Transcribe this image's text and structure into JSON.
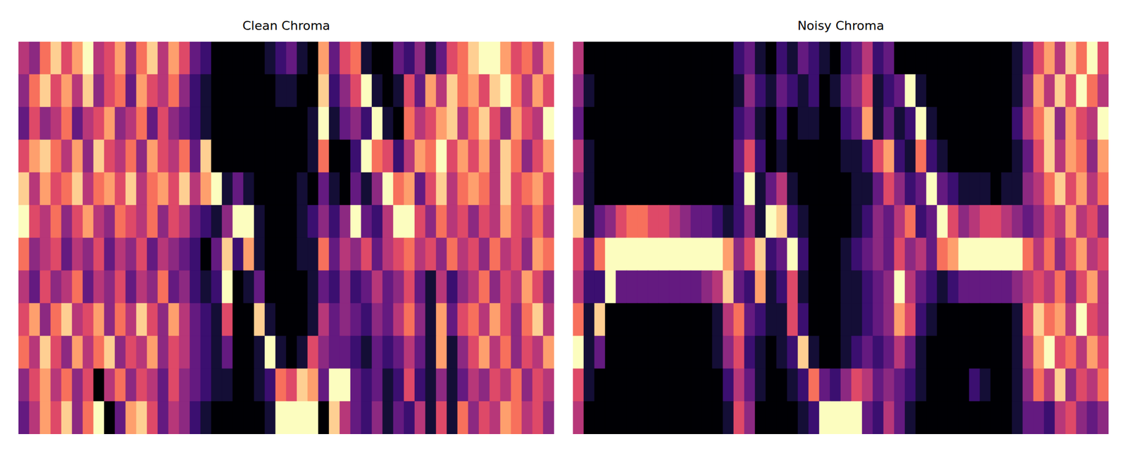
{
  "chart_data": [
    {
      "type": "heatmap",
      "title": "Clean Chroma",
      "tick_labels": false,
      "color": "magma",
      "clim": [
        0,
        1
      ],
      "cells": [
        [
          0.5,
          0.4,
          0.7,
          0.9,
          0.6,
          0.8,
          1.0,
          0.5,
          0.6,
          0.8,
          0.4,
          0.7,
          0.9,
          0.5,
          0.8,
          0.6,
          0.3,
          0.2,
          0.0,
          0.0,
          0.0,
          0.0,
          0.0,
          0.1,
          0.2,
          0.3,
          0.1,
          0.0,
          0.8,
          0.3,
          0.6,
          0.7,
          0.1,
          0.0,
          0.0,
          0.3,
          0.2,
          0.4,
          0.1,
          0.3,
          0.6,
          0.7,
          0.9,
          1.0,
          1.0,
          0.8,
          0.6,
          0.7,
          0.5,
          0.8
        ],
        [
          0.4,
          0.7,
          0.9,
          0.6,
          0.8,
          0.5,
          0.9,
          0.4,
          0.6,
          0.7,
          0.3,
          0.8,
          0.6,
          0.5,
          0.7,
          0.4,
          0.2,
          0.1,
          0.0,
          0.0,
          0.0,
          0.0,
          0.0,
          0.0,
          0.1,
          0.1,
          0.0,
          0.0,
          0.9,
          0.2,
          0.4,
          0.6,
          1.0,
          0.1,
          0.0,
          0.1,
          0.6,
          0.3,
          0.8,
          0.5,
          0.9,
          0.7,
          0.8,
          0.6,
          0.9,
          1.0,
          0.7,
          0.5,
          0.8,
          0.6
        ],
        [
          0.3,
          0.6,
          0.4,
          0.5,
          0.7,
          0.3,
          0.5,
          0.6,
          0.8,
          0.4,
          0.5,
          0.7,
          0.3,
          0.6,
          0.4,
          0.3,
          0.2,
          0.1,
          0.0,
          0.0,
          0.0,
          0.0,
          0.0,
          0.0,
          0.0,
          0.0,
          0.0,
          0.1,
          1.0,
          0.1,
          0.3,
          0.4,
          0.2,
          1.0,
          0.1,
          0.0,
          0.7,
          0.5,
          0.6,
          0.8,
          0.9,
          0.5,
          0.7,
          0.9,
          0.6,
          0.4,
          0.8,
          0.6,
          0.5,
          1.0
        ],
        [
          0.6,
          0.8,
          0.9,
          0.7,
          0.5,
          0.8,
          0.4,
          0.9,
          0.6,
          0.5,
          0.7,
          0.4,
          0.8,
          0.6,
          0.5,
          0.7,
          0.3,
          0.9,
          0.0,
          0.0,
          0.0,
          0.0,
          0.0,
          0.0,
          0.0,
          0.0,
          0.0,
          0.1,
          0.7,
          0.0,
          0.0,
          0.2,
          1.0,
          0.7,
          0.6,
          0.2,
          0.5,
          0.8,
          0.7,
          1.0,
          0.6,
          0.8,
          0.6,
          0.8,
          0.5,
          0.9,
          0.7,
          0.4,
          0.6,
          0.8
        ],
        [
          0.9,
          0.5,
          0.8,
          0.6,
          0.7,
          0.9,
          0.5,
          0.7,
          0.8,
          0.6,
          0.9,
          0.5,
          0.7,
          0.8,
          0.6,
          0.9,
          0.5,
          0.8,
          1.0,
          0.1,
          0.3,
          0.1,
          0.0,
          0.0,
          0.0,
          0.0,
          0.1,
          0.0,
          0.3,
          0.1,
          0.0,
          0.3,
          0.1,
          0.4,
          1.0,
          0.7,
          0.8,
          0.3,
          0.6,
          0.9,
          0.5,
          0.7,
          0.8,
          0.7,
          0.5,
          0.9,
          0.6,
          0.7,
          0.8,
          0.6
        ],
        [
          1.0,
          0.6,
          0.5,
          0.7,
          0.4,
          0.6,
          0.8,
          0.5,
          0.4,
          0.7,
          0.6,
          0.5,
          0.7,
          0.4,
          0.6,
          0.5,
          0.3,
          0.2,
          0.1,
          0.4,
          1.0,
          1.0,
          0.1,
          0.0,
          0.0,
          0.0,
          0.1,
          0.2,
          0.4,
          0.2,
          0.4,
          1.0,
          0.3,
          0.2,
          0.5,
          1.0,
          1.0,
          0.6,
          0.4,
          0.7,
          0.5,
          0.6,
          0.4,
          0.6,
          0.5,
          0.8,
          0.6,
          0.5,
          0.7,
          0.5
        ],
        [
          0.7,
          0.4,
          0.5,
          0.6,
          0.3,
          0.5,
          0.4,
          0.6,
          0.3,
          0.5,
          0.4,
          0.6,
          0.3,
          0.5,
          0.4,
          0.3,
          0.2,
          0.0,
          0.3,
          0.9,
          0.2,
          0.8,
          0.1,
          0.0,
          0.0,
          0.0,
          0.1,
          0.1,
          0.7,
          0.3,
          0.5,
          0.4,
          0.6,
          0.3,
          0.5,
          0.6,
          0.7,
          0.5,
          0.6,
          0.4,
          0.7,
          0.5,
          0.6,
          0.4,
          0.7,
          0.5,
          0.6,
          0.4,
          0.8,
          0.7
        ],
        [
          0.5,
          0.3,
          0.6,
          0.4,
          0.5,
          0.7,
          0.3,
          0.5,
          0.4,
          0.6,
          0.3,
          0.5,
          0.4,
          0.7,
          0.3,
          0.4,
          0.2,
          0.1,
          0.2,
          1.0,
          0.0,
          0.1,
          0.3,
          0.0,
          0.0,
          0.0,
          0.0,
          0.1,
          0.3,
          0.2,
          0.4,
          0.2,
          0.3,
          0.5,
          0.3,
          0.4,
          0.6,
          0.3,
          0.1,
          0.5,
          0.2,
          0.4,
          0.5,
          0.7,
          0.4,
          0.6,
          0.5,
          0.8,
          0.6,
          0.4
        ],
        [
          0.6,
          0.8,
          0.4,
          0.7,
          0.9,
          0.5,
          0.6,
          0.8,
          0.4,
          0.7,
          0.5,
          0.9,
          0.6,
          0.4,
          0.8,
          0.5,
          0.3,
          0.2,
          0.1,
          0.6,
          0.0,
          0.0,
          0.9,
          0.1,
          0.0,
          0.0,
          0.0,
          0.1,
          0.5,
          0.3,
          0.4,
          0.3,
          0.2,
          0.4,
          0.3,
          0.5,
          0.7,
          0.4,
          0.1,
          0.8,
          0.3,
          0.6,
          0.7,
          0.5,
          0.8,
          0.6,
          0.4,
          0.7,
          0.9,
          0.5
        ],
        [
          0.7,
          0.5,
          0.9,
          0.6,
          0.4,
          0.8,
          0.5,
          0.7,
          0.9,
          0.4,
          0.6,
          0.5,
          0.8,
          0.4,
          0.6,
          0.5,
          0.3,
          0.2,
          0.1,
          0.3,
          0.0,
          0.0,
          0.1,
          1.0,
          0.1,
          0.0,
          0.1,
          0.6,
          0.4,
          0.3,
          0.3,
          0.2,
          0.1,
          0.3,
          0.2,
          0.3,
          0.5,
          0.3,
          0.1,
          0.8,
          0.1,
          0.4,
          0.6,
          0.8,
          0.5,
          0.7,
          0.4,
          0.6,
          0.5,
          0.8
        ],
        [
          0.4,
          0.6,
          0.8,
          0.5,
          0.7,
          0.4,
          0.6,
          0.0,
          0.5,
          0.7,
          0.4,
          0.6,
          0.5,
          0.3,
          0.6,
          0.4,
          0.3,
          0.2,
          0.1,
          0.1,
          0.0,
          0.0,
          0.1,
          0.2,
          0.7,
          0.6,
          0.9,
          0.8,
          0.3,
          1.0,
          1.0,
          0.3,
          0.2,
          0.3,
          0.1,
          0.2,
          0.6,
          0.2,
          0.1,
          0.4,
          0.1,
          0.3,
          0.5,
          0.4,
          0.6,
          0.5,
          0.7,
          0.4,
          0.6,
          0.5
        ],
        [
          0.3,
          0.5,
          0.8,
          0.6,
          0.9,
          0.4,
          0.7,
          1.0,
          0.0,
          0.3,
          0.8,
          0.9,
          0.6,
          0.3,
          0.5,
          0.4,
          0.2,
          0.1,
          0.0,
          0.0,
          0.0,
          0.0,
          0.0,
          0.1,
          1.0,
          1.0,
          1.0,
          1.0,
          0.0,
          0.9,
          0.5,
          0.3,
          0.2,
          0.4,
          0.1,
          0.3,
          0.2,
          0.5,
          0.1,
          0.6,
          0.1,
          0.7,
          0.4,
          0.6,
          0.5,
          0.8,
          0.7,
          0.5,
          0.6,
          0.4
        ]
      ]
    },
    {
      "type": "heatmap",
      "title": "Noisy Chroma",
      "tick_labels": false,
      "color": "magma",
      "clim": [
        0,
        1
      ],
      "cells": [
        [
          0.5,
          0.0,
          0.0,
          0.0,
          0.0,
          0.0,
          0.0,
          0.0,
          0.0,
          0.0,
          0.0,
          0.0,
          0.0,
          0.0,
          0.0,
          0.2,
          0.3,
          0.1,
          0.0,
          0.2,
          0.1,
          0.3,
          0.2,
          0.1,
          0.0,
          0.2,
          0.3,
          0.5,
          0.2,
          0.3,
          0.0,
          0.0,
          0.0,
          0.0,
          0.0,
          0.0,
          0.0,
          0.0,
          0.0,
          0.0,
          0.0,
          0.1,
          0.3,
          0.6,
          0.8,
          0.5,
          0.9,
          0.7,
          1.0,
          0.6
        ],
        [
          0.4,
          0.1,
          0.0,
          0.0,
          0.0,
          0.0,
          0.0,
          0.0,
          0.0,
          0.0,
          0.0,
          0.0,
          0.0,
          0.0,
          0.0,
          0.1,
          0.4,
          0.2,
          0.1,
          0.3,
          0.2,
          0.1,
          0.2,
          0.0,
          0.1,
          0.3,
          0.4,
          0.6,
          0.1,
          0.2,
          0.3,
          1.0,
          0.1,
          0.0,
          0.0,
          0.0,
          0.0,
          0.0,
          0.0,
          0.0,
          0.0,
          0.1,
          0.4,
          0.8,
          0.5,
          0.9,
          0.6,
          1.0,
          0.7,
          0.5
        ],
        [
          0.3,
          0.0,
          0.0,
          0.0,
          0.0,
          0.0,
          0.0,
          0.0,
          0.0,
          0.0,
          0.0,
          0.0,
          0.0,
          0.0,
          0.0,
          0.2,
          0.3,
          0.1,
          0.0,
          0.2,
          0.0,
          0.1,
          0.1,
          0.0,
          0.0,
          0.2,
          0.3,
          0.8,
          0.1,
          0.3,
          0.1,
          0.2,
          1.0,
          0.1,
          0.0,
          0.0,
          0.0,
          0.0,
          0.0,
          0.0,
          0.0,
          0.2,
          0.5,
          0.7,
          0.9,
          0.4,
          0.8,
          0.6,
          0.5,
          1.0
        ],
        [
          0.5,
          0.1,
          0.0,
          0.0,
          0.0,
          0.0,
          0.0,
          0.0,
          0.0,
          0.0,
          0.0,
          0.0,
          0.0,
          0.0,
          0.0,
          0.3,
          0.6,
          0.2,
          0.0,
          0.1,
          0.0,
          0.0,
          0.0,
          0.0,
          0.0,
          0.1,
          0.1,
          0.2,
          0.6,
          0.8,
          0.2,
          0.1,
          0.7,
          0.2,
          0.1,
          0.0,
          0.0,
          0.0,
          0.0,
          0.0,
          0.0,
          0.1,
          0.3,
          0.6,
          0.9,
          0.5,
          0.8,
          0.7,
          0.4,
          0.8
        ],
        [
          0.4,
          0.1,
          0.0,
          0.0,
          0.0,
          0.0,
          0.0,
          0.0,
          0.0,
          0.0,
          0.0,
          0.0,
          0.0,
          0.0,
          0.0,
          0.2,
          1.0,
          0.1,
          0.3,
          0.5,
          0.1,
          0.0,
          0.0,
          0.0,
          0.0,
          0.0,
          0.1,
          0.1,
          0.3,
          0.6,
          0.4,
          0.2,
          0.3,
          1.0,
          0.3,
          0.2,
          0.1,
          0.1,
          0.1,
          0.0,
          0.1,
          0.1,
          0.4,
          0.5,
          0.7,
          0.9,
          0.6,
          0.8,
          0.5,
          0.7
        ],
        [
          0.9,
          0.1,
          0.3,
          0.4,
          0.6,
          0.7,
          0.7,
          0.6,
          0.6,
          0.5,
          0.4,
          0.3,
          0.3,
          0.2,
          0.1,
          0.2,
          0.4,
          0.1,
          1.0,
          0.9,
          0.2,
          0.1,
          0.0,
          0.0,
          0.0,
          0.0,
          0.1,
          0.2,
          0.4,
          0.3,
          0.5,
          0.7,
          0.2,
          0.3,
          1.0,
          0.6,
          0.4,
          0.5,
          0.6,
          0.6,
          0.5,
          0.4,
          0.3,
          0.4,
          0.6,
          0.5,
          0.8,
          0.5,
          0.6,
          0.4
        ],
        [
          0.6,
          0.3,
          0.7,
          1.0,
          1.0,
          1.0,
          1.0,
          1.0,
          1.0,
          1.0,
          1.0,
          1.0,
          1.0,
          1.0,
          0.8,
          0.4,
          0.6,
          0.9,
          0.2,
          0.3,
          1.0,
          0.2,
          0.0,
          0.0,
          0.0,
          0.1,
          0.2,
          0.3,
          0.4,
          0.3,
          0.6,
          0.4,
          0.5,
          0.3,
          0.7,
          0.8,
          1.0,
          1.0,
          1.0,
          1.0,
          1.0,
          1.0,
          0.7,
          0.5,
          0.7,
          0.4,
          0.6,
          0.8,
          0.5,
          0.6
        ],
        [
          0.5,
          0.2,
          0.2,
          1.0,
          0.3,
          0.3,
          0.3,
          0.3,
          0.3,
          0.3,
          0.3,
          0.3,
          0.4,
          0.5,
          0.9,
          0.3,
          0.2,
          0.8,
          0.1,
          0.2,
          0.6,
          0.1,
          0.0,
          0.0,
          0.0,
          0.1,
          0.1,
          0.2,
          0.3,
          0.4,
          1.0,
          0.5,
          0.3,
          0.2,
          0.1,
          0.2,
          0.3,
          0.3,
          0.3,
          0.3,
          0.3,
          0.4,
          0.5,
          0.6,
          0.5,
          0.7,
          0.4,
          0.6,
          0.8,
          0.5
        ],
        [
          0.7,
          0.1,
          0.9,
          0.0,
          0.0,
          0.0,
          0.0,
          0.0,
          0.0,
          0.0,
          0.0,
          0.0,
          0.0,
          0.1,
          0.5,
          0.7,
          0.3,
          0.2,
          0.1,
          0.1,
          0.6,
          0.2,
          0.0,
          0.0,
          0.0,
          0.1,
          0.1,
          0.2,
          0.3,
          0.4,
          0.8,
          0.6,
          0.2,
          0.1,
          0.0,
          0.0,
          0.0,
          0.0,
          0.0,
          0.0,
          0.0,
          0.1,
          0.6,
          0.9,
          0.7,
          0.8,
          0.5,
          1.0,
          0.6,
          0.5
        ],
        [
          1.0,
          0.1,
          0.3,
          0.0,
          0.0,
          0.0,
          0.0,
          0.0,
          0.0,
          0.0,
          0.0,
          0.0,
          0.0,
          0.1,
          0.4,
          0.6,
          0.2,
          0.1,
          0.0,
          0.1,
          0.2,
          0.9,
          0.1,
          0.0,
          0.0,
          0.1,
          0.2,
          0.3,
          0.2,
          0.3,
          0.5,
          0.3,
          0.1,
          0.0,
          0.0,
          0.0,
          0.0,
          0.0,
          0.0,
          0.0,
          0.0,
          0.1,
          0.5,
          0.8,
          1.0,
          0.6,
          0.7,
          0.5,
          0.8,
          0.6
        ],
        [
          0.6,
          0.1,
          0.0,
          0.0,
          0.0,
          0.0,
          0.0,
          0.0,
          0.0,
          0.0,
          0.0,
          0.0,
          0.0,
          0.0,
          0.2,
          0.5,
          0.3,
          0.1,
          0.0,
          0.0,
          0.1,
          0.2,
          0.7,
          0.3,
          0.2,
          0.4,
          0.6,
          0.5,
          0.3,
          0.4,
          0.3,
          0.2,
          0.1,
          0.0,
          0.0,
          0.0,
          0.0,
          0.2,
          0.1,
          0.0,
          0.0,
          0.1,
          0.4,
          0.7,
          0.5,
          0.9,
          0.4,
          0.6,
          0.5,
          0.7
        ],
        [
          0.5,
          0.0,
          0.0,
          0.0,
          0.0,
          0.0,
          0.0,
          0.0,
          0.0,
          0.0,
          0.0,
          0.0,
          0.0,
          0.0,
          0.1,
          0.6,
          0.4,
          0.0,
          0.0,
          0.0,
          0.0,
          0.1,
          0.2,
          1.0,
          1.0,
          1.0,
          1.0,
          0.3,
          0.2,
          0.5,
          0.3,
          0.1,
          0.0,
          0.0,
          0.0,
          0.0,
          0.0,
          0.0,
          0.0,
          0.0,
          0.0,
          0.1,
          0.3,
          0.3,
          0.2,
          0.5,
          0.6,
          0.4,
          0.3,
          0.4
        ]
      ]
    }
  ]
}
